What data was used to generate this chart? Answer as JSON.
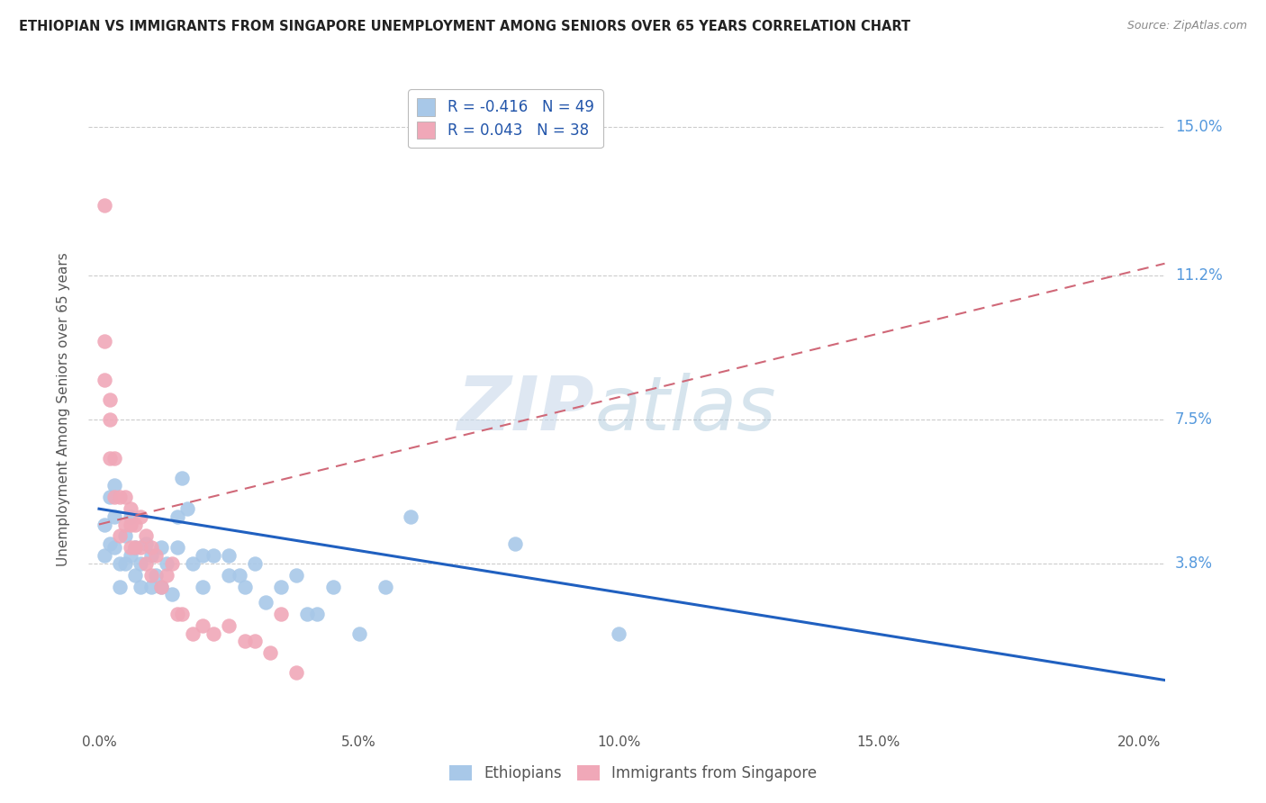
{
  "title": "ETHIOPIAN VS IMMIGRANTS FROM SINGAPORE UNEMPLOYMENT AMONG SENIORS OVER 65 YEARS CORRELATION CHART",
  "source": "Source: ZipAtlas.com",
  "ylabel": "Unemployment Among Seniors over 65 years",
  "ylabel_ticks": [
    "15.0%",
    "11.2%",
    "7.5%",
    "3.8%"
  ],
  "ylabel_vals": [
    0.15,
    0.112,
    0.075,
    0.038
  ],
  "xlabel_ticks": [
    "0.0%",
    "5.0%",
    "10.0%",
    "15.0%",
    "20.0%"
  ],
  "xlabel_vals": [
    0.0,
    0.05,
    0.1,
    0.15,
    0.2
  ],
  "xlim": [
    -0.002,
    0.205
  ],
  "ylim": [
    -0.005,
    0.16
  ],
  "watermark_zip": "ZIP",
  "watermark_atlas": "atlas",
  "legend_R1": "-0.416",
  "legend_N1": "49",
  "legend_R2": "0.043",
  "legend_N2": "38",
  "blue_color": "#a8c8e8",
  "pink_color": "#f0a8b8",
  "blue_line_color": "#2060c0",
  "pink_line_color": "#d06878",
  "background_color": "#ffffff",
  "grid_color": "#cccccc",
  "title_color": "#222222",
  "right_tick_color": "#5599dd",
  "ethiopians_x": [
    0.001,
    0.001,
    0.002,
    0.002,
    0.003,
    0.003,
    0.003,
    0.004,
    0.004,
    0.005,
    0.005,
    0.006,
    0.006,
    0.007,
    0.007,
    0.008,
    0.008,
    0.009,
    0.01,
    0.01,
    0.011,
    0.012,
    0.012,
    0.013,
    0.014,
    0.015,
    0.015,
    0.016,
    0.017,
    0.018,
    0.02,
    0.02,
    0.022,
    0.025,
    0.025,
    0.027,
    0.028,
    0.03,
    0.032,
    0.035,
    0.038,
    0.04,
    0.042,
    0.045,
    0.05,
    0.055,
    0.06,
    0.08,
    0.1
  ],
  "ethiopians_y": [
    0.048,
    0.04,
    0.055,
    0.043,
    0.058,
    0.05,
    0.042,
    0.038,
    0.032,
    0.045,
    0.038,
    0.05,
    0.04,
    0.042,
    0.035,
    0.038,
    0.032,
    0.043,
    0.04,
    0.032,
    0.035,
    0.042,
    0.032,
    0.038,
    0.03,
    0.05,
    0.042,
    0.06,
    0.052,
    0.038,
    0.04,
    0.032,
    0.04,
    0.035,
    0.04,
    0.035,
    0.032,
    0.038,
    0.028,
    0.032,
    0.035,
    0.025,
    0.025,
    0.032,
    0.02,
    0.032,
    0.05,
    0.043,
    0.02
  ],
  "singapore_x": [
    0.001,
    0.001,
    0.001,
    0.002,
    0.002,
    0.002,
    0.003,
    0.003,
    0.004,
    0.004,
    0.005,
    0.005,
    0.006,
    0.006,
    0.006,
    0.007,
    0.007,
    0.008,
    0.008,
    0.009,
    0.009,
    0.01,
    0.01,
    0.011,
    0.012,
    0.013,
    0.014,
    0.015,
    0.016,
    0.018,
    0.02,
    0.022,
    0.025,
    0.028,
    0.03,
    0.033,
    0.035,
    0.038
  ],
  "singapore_y": [
    0.13,
    0.095,
    0.085,
    0.08,
    0.075,
    0.065,
    0.065,
    0.055,
    0.055,
    0.045,
    0.055,
    0.048,
    0.052,
    0.048,
    0.042,
    0.048,
    0.042,
    0.05,
    0.042,
    0.045,
    0.038,
    0.042,
    0.035,
    0.04,
    0.032,
    0.035,
    0.038,
    0.025,
    0.025,
    0.02,
    0.022,
    0.02,
    0.022,
    0.018,
    0.018,
    0.015,
    0.025,
    0.01
  ],
  "eth_line_x0": 0.0,
  "eth_line_x1": 0.205,
  "eth_line_y0": 0.052,
  "eth_line_y1": 0.008,
  "sing_line_x0": 0.0,
  "sing_line_x1": 0.205,
  "sing_line_y0": 0.048,
  "sing_line_y1": 0.115
}
